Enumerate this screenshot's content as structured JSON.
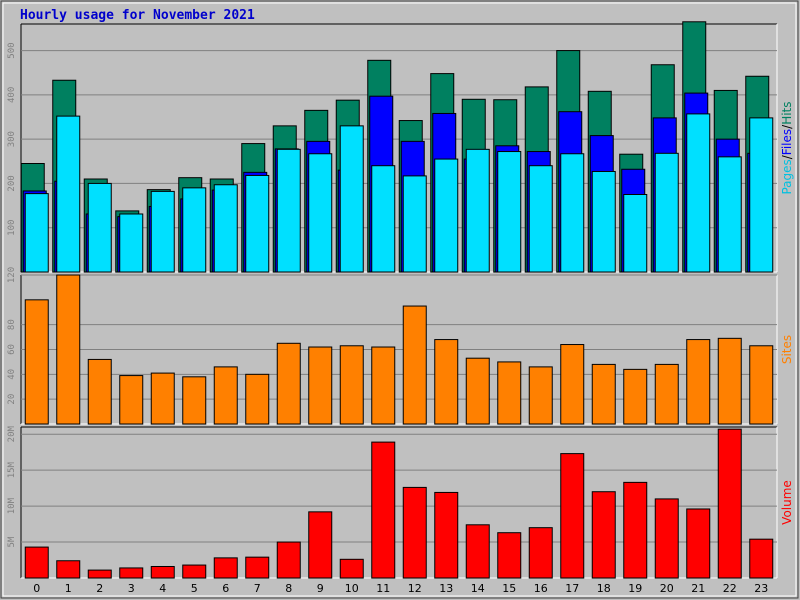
{
  "chart_data": {
    "title": "Hourly usage for November 2021",
    "type": "bar",
    "categories": [
      "0",
      "1",
      "2",
      "3",
      "4",
      "5",
      "6",
      "7",
      "8",
      "9",
      "10",
      "11",
      "12",
      "13",
      "14",
      "15",
      "16",
      "17",
      "18",
      "19",
      "20",
      "21",
      "22",
      "23"
    ],
    "panels": [
      {
        "id": "pfh",
        "type": "bar",
        "ylim": [
          0,
          560
        ],
        "yticks": [
          100,
          200,
          300,
          400,
          500
        ],
        "ytick_labels": [
          "100",
          "200",
          "300",
          "400",
          "500"
        ],
        "side_label_parts": [
          {
            "text": "Pages",
            "color": "#00c0e0"
          },
          {
            "text": "/",
            "color": "#000000"
          },
          {
            "text": "Files",
            "color": "#0000ff"
          },
          {
            "text": "/",
            "color": "#000000"
          },
          {
            "text": "Hits",
            "color": "#008060"
          }
        ],
        "series": [
          {
            "name": "Hits",
            "color": "#008060",
            "values": [
              245,
              433,
              210,
              138,
              186,
              213,
              210,
              290,
              330,
              365,
              388,
              478,
              342,
              448,
              390,
              389,
              418,
              500,
              408,
              266,
              468,
              565,
              410,
              442
            ]
          },
          {
            "name": "Files",
            "color": "#0000ff",
            "values": [
              183,
              205,
              131,
              125,
              148,
              165,
              185,
              225,
              278,
              295,
              230,
              397,
              295,
              358,
              255,
              285,
              272,
              362,
              308,
              232,
              348,
              404,
              300,
              268
            ]
          },
          {
            "name": "Pages",
            "color": "#00e0ff",
            "values": [
              177,
              352,
              200,
              131,
              182,
              190,
              197,
              218,
              277,
              267,
              330,
              240,
              217,
              255,
              277,
              272,
              240,
              267,
              227,
              175,
              268,
              357,
              260,
              348
            ]
          }
        ]
      },
      {
        "id": "sites",
        "type": "bar",
        "ylim": [
          0,
          120
        ],
        "yticks": [
          20,
          40,
          60,
          80,
          120
        ],
        "ytick_labels": [
          "20",
          "40",
          "60",
          "80",
          "120"
        ],
        "side_label_parts": [
          {
            "text": "Sites",
            "color": "#ff8000"
          }
        ],
        "series": [
          {
            "name": "Sites",
            "color": "#ff8000",
            "values": [
              100,
              120,
              52,
              39,
              41,
              38,
              46,
              40,
              65,
              62,
              63,
              62,
              95,
              68,
              53,
              50,
              46,
              64,
              48,
              44,
              48,
              68,
              69,
              63
            ]
          }
        ]
      },
      {
        "id": "volume",
        "type": "bar",
        "ylim": [
          0,
          21000000
        ],
        "yticks": [
          5000000,
          10000000,
          15000000,
          20000000
        ],
        "ytick_labels": [
          "5M",
          "10M",
          "15M",
          "20M"
        ],
        "side_label_parts": [
          {
            "text": "Volume",
            "color": "#ff0000"
          }
        ],
        "series": [
          {
            "name": "Volume",
            "color": "#ff0000",
            "values": [
              4300000,
              2400000,
              1100000,
              1400000,
              1600000,
              1800000,
              2800000,
              2900000,
              5000000,
              9200000,
              2600000,
              18900000,
              12600000,
              11900000,
              7400000,
              6300000,
              7000000,
              17300000,
              12000000,
              13300000,
              11000000,
              9600000,
              20700000,
              5400000
            ]
          }
        ]
      }
    ]
  }
}
